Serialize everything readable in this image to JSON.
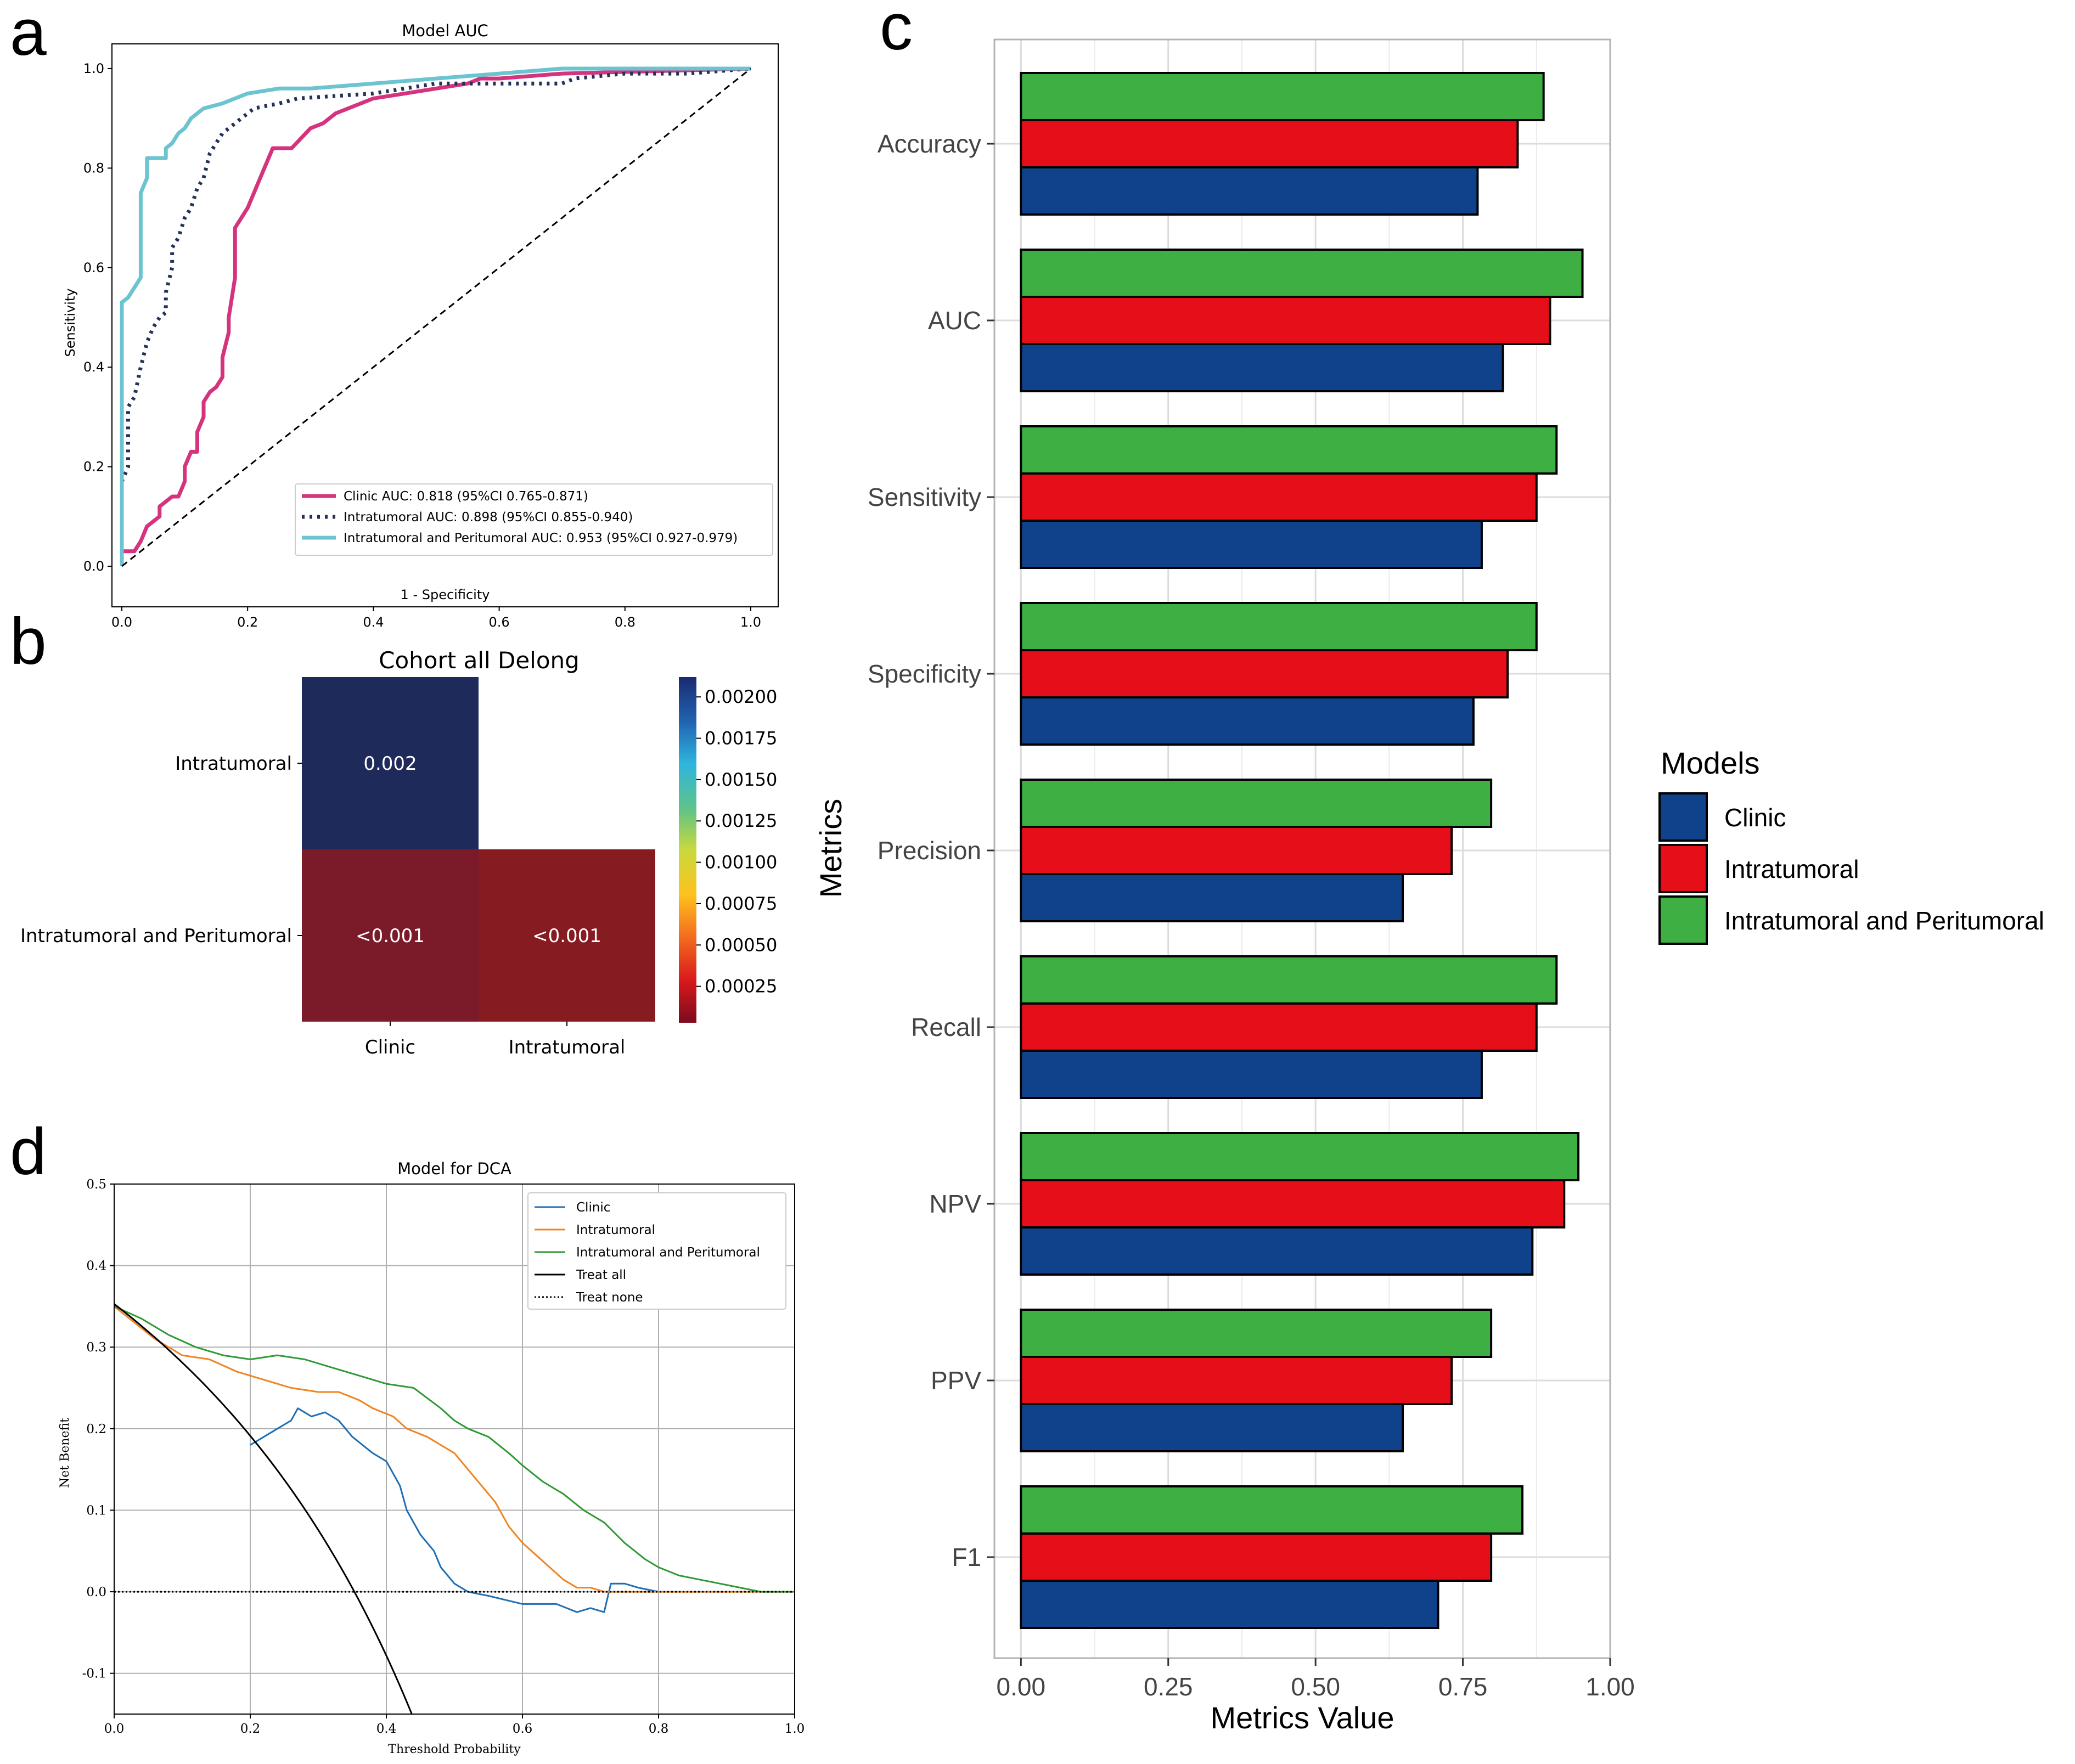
{
  "chart_data": [
    {
      "panel": "a",
      "type": "line",
      "title": "Model AUC",
      "xlabel": "1 - Specificity",
      "ylabel": "Sensitivity",
      "xlim": [
        0,
        1
      ],
      "ylim": [
        0,
        1
      ],
      "xticks": [
        "0.0",
        "0.2",
        "0.4",
        "0.6",
        "0.8",
        "1.0"
      ],
      "yticks": [
        "0.0",
        "0.2",
        "0.4",
        "0.6",
        "0.8",
        "1.0"
      ],
      "legend_position": "bottom-right",
      "series": [
        {
          "name": "Clinic AUC: 0.818 (95%CI 0.765-0.871)",
          "color": "#d6337f",
          "style": "solid",
          "points": [
            [
              0,
              0
            ],
            [
              0,
              0.03
            ],
            [
              0.02,
              0.03
            ],
            [
              0.03,
              0.05
            ],
            [
              0.04,
              0.08
            ],
            [
              0.06,
              0.1
            ],
            [
              0.06,
              0.12
            ],
            [
              0.07,
              0.13
            ],
            [
              0.08,
              0.14
            ],
            [
              0.09,
              0.14
            ],
            [
              0.1,
              0.17
            ],
            [
              0.1,
              0.2
            ],
            [
              0.11,
              0.23
            ],
            [
              0.12,
              0.23
            ],
            [
              0.12,
              0.27
            ],
            [
              0.13,
              0.3
            ],
            [
              0.13,
              0.33
            ],
            [
              0.14,
              0.35
            ],
            [
              0.15,
              0.36
            ],
            [
              0.16,
              0.38
            ],
            [
              0.16,
              0.42
            ],
            [
              0.17,
              0.47
            ],
            [
              0.17,
              0.5
            ],
            [
              0.18,
              0.58
            ],
            [
              0.18,
              0.68
            ],
            [
              0.2,
              0.72
            ],
            [
              0.21,
              0.75
            ],
            [
              0.22,
              0.78
            ],
            [
              0.24,
              0.84
            ],
            [
              0.27,
              0.84
            ],
            [
              0.3,
              0.88
            ],
            [
              0.32,
              0.89
            ],
            [
              0.34,
              0.91
            ],
            [
              0.4,
              0.94
            ],
            [
              0.45,
              0.95
            ],
            [
              0.5,
              0.96
            ],
            [
              0.55,
              0.97
            ],
            [
              0.57,
              0.98
            ],
            [
              0.6,
              0.98
            ],
            [
              0.7,
              0.99
            ],
            [
              1.0,
              1.0
            ]
          ]
        },
        {
          "name": "Intratumoral AUC: 0.898 (95%CI 0.855-0.940)",
          "color": "#23305a",
          "style": "dotted",
          "points": [
            [
              0,
              0
            ],
            [
              0,
              0.17
            ],
            [
              0.01,
              0.2
            ],
            [
              0.01,
              0.32
            ],
            [
              0.02,
              0.34
            ],
            [
              0.03,
              0.4
            ],
            [
              0.04,
              0.45
            ],
            [
              0.05,
              0.48
            ],
            [
              0.06,
              0.5
            ],
            [
              0.07,
              0.51
            ],
            [
              0.07,
              0.55
            ],
            [
              0.08,
              0.6
            ],
            [
              0.08,
              0.64
            ],
            [
              0.09,
              0.66
            ],
            [
              0.1,
              0.7
            ],
            [
              0.11,
              0.72
            ],
            [
              0.12,
              0.76
            ],
            [
              0.13,
              0.78
            ],
            [
              0.14,
              0.83
            ],
            [
              0.16,
              0.87
            ],
            [
              0.18,
              0.89
            ],
            [
              0.21,
              0.92
            ],
            [
              0.25,
              0.93
            ],
            [
              0.28,
              0.94
            ],
            [
              0.4,
              0.95
            ],
            [
              0.45,
              0.96
            ],
            [
              0.5,
              0.97
            ],
            [
              0.55,
              0.97
            ],
            [
              0.7,
              0.97
            ],
            [
              0.72,
              0.98
            ],
            [
              0.8,
              0.99
            ],
            [
              0.9,
              0.99
            ],
            [
              1.0,
              1.0
            ]
          ]
        },
        {
          "name": "Intratumoral and Peritumoral AUC: 0.953 (95%CI 0.927-0.979)",
          "color": "#6cc4d0",
          "style": "solid",
          "points": [
            [
              0,
              0
            ],
            [
              0,
              0.53
            ],
            [
              0.01,
              0.54
            ],
            [
              0.02,
              0.56
            ],
            [
              0.03,
              0.58
            ],
            [
              0.03,
              0.75
            ],
            [
              0.04,
              0.78
            ],
            [
              0.04,
              0.82
            ],
            [
              0.07,
              0.82
            ],
            [
              0.07,
              0.84
            ],
            [
              0.08,
              0.85
            ],
            [
              0.09,
              0.87
            ],
            [
              0.1,
              0.88
            ],
            [
              0.11,
              0.9
            ],
            [
              0.12,
              0.91
            ],
            [
              0.13,
              0.92
            ],
            [
              0.16,
              0.93
            ],
            [
              0.2,
              0.95
            ],
            [
              0.25,
              0.96
            ],
            [
              0.3,
              0.96
            ],
            [
              0.4,
              0.97
            ],
            [
              0.5,
              0.98
            ],
            [
              0.6,
              0.99
            ],
            [
              0.7,
              1.0
            ],
            [
              1.0,
              1.0
            ]
          ]
        },
        {
          "name": "",
          "color": "#000000",
          "style": "dashed",
          "points": [
            [
              0,
              0
            ],
            [
              1,
              1
            ]
          ]
        }
      ]
    },
    {
      "panel": "b",
      "type": "heatmap",
      "title": "Cohort all Delong",
      "row_labels": [
        "Intratumoral",
        "Intratumoral and Peritumoral"
      ],
      "col_labels": [
        "Clinic",
        "Intratumoral"
      ],
      "cells": [
        {
          "row": 0,
          "col": 0,
          "value": 0.002,
          "text": "0.002",
          "color": "#1e2a5a"
        },
        {
          "row": 1,
          "col": 0,
          "value": 0.0001,
          "text": "<0.001",
          "color": "#7b1a28"
        },
        {
          "row": 1,
          "col": 1,
          "value": 0.0002,
          "text": "<0.001",
          "color": "#871b22"
        }
      ],
      "colorbar_ticks": [
        "0.00025",
        "0.00050",
        "0.00075",
        "0.00100",
        "0.00125",
        "0.00150",
        "0.00175",
        "0.00200"
      ],
      "colorbar_range": [
        3e-05,
        0.00212
      ]
    },
    {
      "panel": "c",
      "type": "bar",
      "orientation": "horizontal",
      "xlabel": "Metrics Value",
      "ylabel": "Metrics",
      "xlim": [
        -0.045,
        1.0
      ],
      "xticks": [
        "0.00",
        "0.25",
        "0.50",
        "0.75",
        "1.00"
      ],
      "categories": [
        "Accuracy",
        "AUC",
        "Sensitivity",
        "Specificity",
        "Precision",
        "Recall",
        "NPV",
        "PPV",
        "F1"
      ],
      "legend_title": "Models",
      "legend_position": "right",
      "series": [
        {
          "name": "Clinic",
          "color": "#0f428a",
          "values": [
            0.775,
            0.818,
            0.782,
            0.768,
            0.648,
            0.782,
            0.868,
            0.648,
            0.708
          ]
        },
        {
          "name": "Intratumoral",
          "color": "#e60f19",
          "values": [
            0.843,
            0.898,
            0.875,
            0.826,
            0.731,
            0.875,
            0.922,
            0.731,
            0.798
          ]
        },
        {
          "name": "Intratumoral and Peritumoral",
          "color": "#3eb043",
          "values": [
            0.887,
            0.953,
            0.909,
            0.875,
            0.798,
            0.909,
            0.946,
            0.798,
            0.851
          ]
        }
      ]
    },
    {
      "panel": "d",
      "type": "line",
      "title": "Model for DCA",
      "xlabel": "Threshold Probability",
      "ylabel": "Net Benefit",
      "xlim": [
        0,
        1
      ],
      "ylim": [
        -0.15,
        0.5
      ],
      "xticks": [
        "0.0",
        "0.2",
        "0.4",
        "0.6",
        "0.8",
        "1.0"
      ],
      "yticks": [
        "-0.1",
        "0.0",
        "0.1",
        "0.2",
        "0.3",
        "0.4",
        "0.5"
      ],
      "legend_position": "top-right",
      "series": [
        {
          "name": "Clinic",
          "color": "#1f6fb4",
          "style": "solid",
          "points": [
            [
              0.2,
              0.18
            ],
            [
              0.22,
              0.19
            ],
            [
              0.24,
              0.2
            ],
            [
              0.26,
              0.21
            ],
            [
              0.27,
              0.225
            ],
            [
              0.29,
              0.215
            ],
            [
              0.31,
              0.22
            ],
            [
              0.33,
              0.21
            ],
            [
              0.35,
              0.19
            ],
            [
              0.38,
              0.17
            ],
            [
              0.4,
              0.16
            ],
            [
              0.42,
              0.13
            ],
            [
              0.43,
              0.1
            ],
            [
              0.45,
              0.07
            ],
            [
              0.47,
              0.05
            ],
            [
              0.48,
              0.03
            ],
            [
              0.5,
              0.01
            ],
            [
              0.52,
              0.0
            ],
            [
              0.55,
              -0.005
            ],
            [
              0.6,
              -0.015
            ],
            [
              0.65,
              -0.015
            ],
            [
              0.68,
              -0.025
            ],
            [
              0.7,
              -0.02
            ],
            [
              0.72,
              -0.025
            ],
            [
              0.73,
              0.01
            ],
            [
              0.75,
              0.01
            ],
            [
              0.77,
              0.005
            ],
            [
              0.8,
              0.0
            ]
          ]
        },
        {
          "name": "Intratumoral",
          "color": "#f08420",
          "style": "solid",
          "points": [
            [
              0,
              0.35
            ],
            [
              0.03,
              0.33
            ],
            [
              0.06,
              0.31
            ],
            [
              0.1,
              0.29
            ],
            [
              0.14,
              0.285
            ],
            [
              0.18,
              0.27
            ],
            [
              0.22,
              0.26
            ],
            [
              0.26,
              0.25
            ],
            [
              0.3,
              0.245
            ],
            [
              0.33,
              0.245
            ],
            [
              0.36,
              0.235
            ],
            [
              0.38,
              0.225
            ],
            [
              0.41,
              0.215
            ],
            [
              0.43,
              0.2
            ],
            [
              0.46,
              0.19
            ],
            [
              0.48,
              0.18
            ],
            [
              0.5,
              0.17
            ],
            [
              0.52,
              0.15
            ],
            [
              0.54,
              0.13
            ],
            [
              0.56,
              0.11
            ],
            [
              0.58,
              0.08
            ],
            [
              0.6,
              0.06
            ],
            [
              0.62,
              0.045
            ],
            [
              0.64,
              0.03
            ],
            [
              0.66,
              0.015
            ],
            [
              0.68,
              0.005
            ],
            [
              0.7,
              0.005
            ],
            [
              0.72,
              0.0
            ],
            [
              1.0,
              0.0
            ]
          ]
        },
        {
          "name": "Intratumoral and Peritumoral",
          "color": "#2f9a35",
          "style": "solid",
          "points": [
            [
              0,
              0.35
            ],
            [
              0.04,
              0.335
            ],
            [
              0.08,
              0.315
            ],
            [
              0.12,
              0.3
            ],
            [
              0.16,
              0.29
            ],
            [
              0.2,
              0.285
            ],
            [
              0.24,
              0.29
            ],
            [
              0.28,
              0.285
            ],
            [
              0.32,
              0.275
            ],
            [
              0.36,
              0.265
            ],
            [
              0.4,
              0.255
            ],
            [
              0.44,
              0.25
            ],
            [
              0.48,
              0.225
            ],
            [
              0.5,
              0.21
            ],
            [
              0.52,
              0.2
            ],
            [
              0.55,
              0.19
            ],
            [
              0.58,
              0.17
            ],
            [
              0.6,
              0.155
            ],
            [
              0.63,
              0.135
            ],
            [
              0.66,
              0.12
            ],
            [
              0.69,
              0.1
            ],
            [
              0.72,
              0.085
            ],
            [
              0.75,
              0.06
            ],
            [
              0.78,
              0.04
            ],
            [
              0.8,
              0.03
            ],
            [
              0.83,
              0.02
            ],
            [
              0.86,
              0.015
            ],
            [
              0.89,
              0.01
            ],
            [
              0.92,
              0.005
            ],
            [
              0.95,
              0.0
            ],
            [
              1.0,
              0.0
            ]
          ]
        },
        {
          "name": "Treat all",
          "color": "#000000",
          "style": "solid",
          "curve": "treat-all",
          "prevalence": 0.353
        },
        {
          "name": "Treat none",
          "color": "#000000",
          "style": "dotted",
          "points": [
            [
              0,
              0
            ],
            [
              1,
              0
            ]
          ]
        }
      ]
    }
  ],
  "panel_letters": [
    "a",
    "b",
    "c",
    "d"
  ]
}
